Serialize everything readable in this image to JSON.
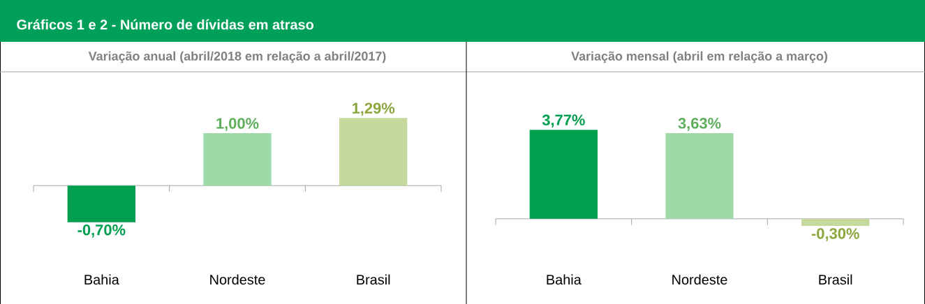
{
  "chart_data": [
    {
      "type": "bar",
      "title": "Gráficos 1 e 2 - Número de dívidas em atraso",
      "subtitle": "Variação anual (abril/2018 em relação a abril/2017)",
      "categories": [
        "Bahia",
        "Nordeste",
        "Brasil"
      ],
      "values": [
        -0.7,
        1.0,
        1.29
      ],
      "colors": [
        "#00a050",
        "#a0d9a8",
        "#c6d99c"
      ],
      "value_labels": [
        "-0,70%",
        "1,00%",
        "1,29%"
      ]
    },
    {
      "type": "bar",
      "subtitle": "Variação mensal (abril em relação a março)",
      "categories": [
        "Bahia",
        "Nordeste",
        "Brasil"
      ],
      "values": [
        3.77,
        3.63,
        -0.3
      ],
      "colors": [
        "#00a050",
        "#a0d9a8",
        "#c6d99c"
      ],
      "value_labels": [
        "3,77%",
        "3,63%",
        "-0,30%"
      ]
    }
  ]
}
